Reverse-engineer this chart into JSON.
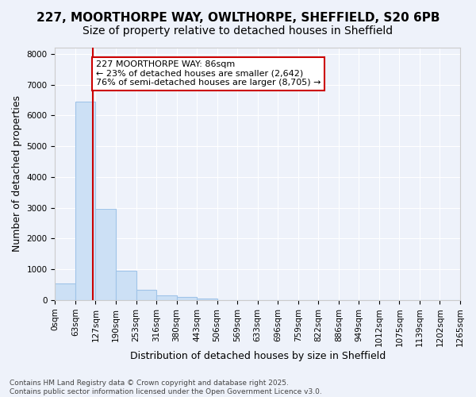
{
  "title_line1": "227, MOORTHORPE WAY, OWLTHORPE, SHEFFIELD, S20 6PB",
  "title_line2": "Size of property relative to detached houses in Sheffield",
  "xlabel": "Distribution of detached houses by size in Sheffield",
  "ylabel": "Number of detached properties",
  "bar_color": "#cce0f5",
  "bar_edge_color": "#a0c4e8",
  "background_color": "#eef2fa",
  "grid_color": "#ffffff",
  "annotation_box_color": "#cc0000",
  "annotation_line_color": "#cc0000",
  "annotation_line1": "227 MOORTHORPE WAY: 86sqm",
  "annotation_line2": "← 23% of detached houses are smaller (2,642)",
  "annotation_line3": "76% of semi-detached houses are larger (8,705) →",
  "footer_line1": "Contains HM Land Registry data © Crown copyright and database right 2025.",
  "footer_line2": "Contains public sector information licensed under the Open Government Licence v3.0.",
  "bin_labels": [
    "0sqm",
    "63sqm",
    "127sqm",
    "190sqm",
    "253sqm",
    "316sqm",
    "380sqm",
    "443sqm",
    "506sqm",
    "569sqm",
    "633sqm",
    "696sqm",
    "759sqm",
    "822sqm",
    "886sqm",
    "949sqm",
    "1012sqm",
    "1075sqm",
    "1139sqm",
    "1202sqm",
    "1265sqm"
  ],
  "bar_values": [
    530,
    6450,
    2960,
    960,
    330,
    150,
    100,
    55,
    0,
    0,
    0,
    0,
    0,
    0,
    0,
    0,
    0,
    0,
    0,
    0
  ],
  "ylim": [
    0,
    8200
  ],
  "yticks": [
    0,
    1000,
    2000,
    3000,
    4000,
    5000,
    6000,
    7000,
    8000
  ],
  "red_line_x": 1.36,
  "title_fontsize": 11,
  "subtitle_fontsize": 10,
  "axis_label_fontsize": 9,
  "tick_fontsize": 7.5,
  "annotation_fontsize": 8,
  "footer_fontsize": 6.5
}
